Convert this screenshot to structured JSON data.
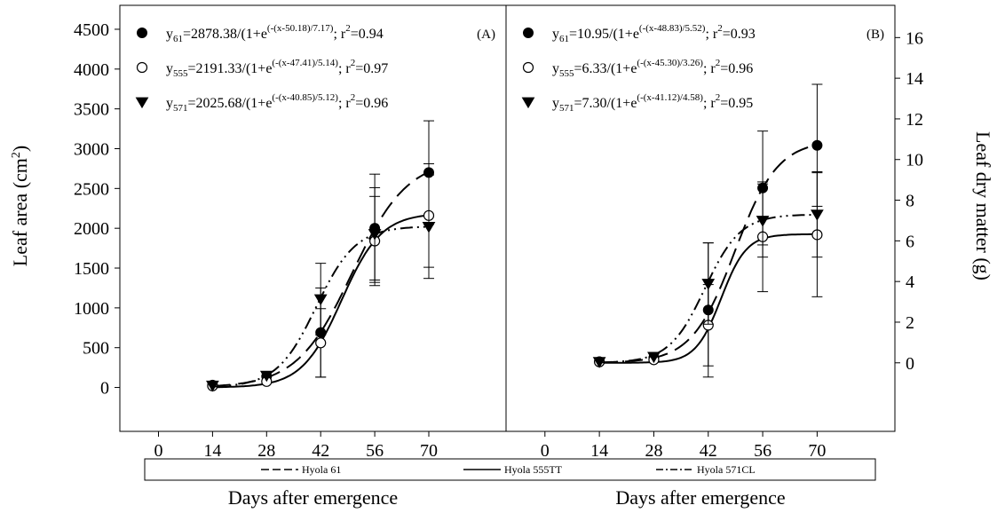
{
  "chart_data": [
    {
      "type": "line",
      "panel": "A",
      "panel_label": "(A)",
      "xlabel": "Days after emergence",
      "ylabel": "Leaf area (cm",
      "ylabel_sup": "2",
      "ylabel_end": ")",
      "y_axis_side": "left",
      "xlim": [
        -10,
        90
      ],
      "ylim": [
        -150,
        4600
      ],
      "x_ticks": [
        0,
        14,
        28,
        42,
        56,
        70
      ],
      "y_ticks": [
        0,
        500,
        1000,
        1500,
        2000,
        2500,
        3000,
        3500,
        4000,
        4500
      ],
      "equations": [
        {
          "prefix": "y",
          "sub": "61",
          "body": "=2878.38/(1+e",
          "exp": "(-(x-50.18)/7.17)",
          "tail": "; r",
          "r2sup": "2",
          "r2val": "=0.94",
          "marker": "filled-circle"
        },
        {
          "prefix": "y",
          "sub": "555",
          "body": "=2191.33/(1+e",
          "exp": "(-(x-47.41)/5.14)",
          "tail": "; r",
          "r2sup": "2",
          "r2val": "=0.97",
          "marker": "open-circle"
        },
        {
          "prefix": "y",
          "sub": "571",
          "body": "=2025.68/(1+e",
          "exp": "(-(x-40.85)/5.12)",
          "tail": "; r",
          "r2sup": "2",
          "r2val": "=0.96",
          "marker": "triangle-down"
        }
      ],
      "series": [
        {
          "name": "Hyola 61",
          "marker": "filled-circle",
          "line": "dashed",
          "params": {
            "a": 2878.38,
            "x0": 50.18,
            "b": 7.17
          },
          "x": [
            14,
            28,
            42,
            56,
            70
          ],
          "y": [
            30,
            140,
            690,
            2000,
            2700
          ],
          "err": [
            0,
            0,
            560,
            680,
            650
          ]
        },
        {
          "name": "Hyola 555TT",
          "marker": "open-circle",
          "line": "solid",
          "params": {
            "a": 2191.33,
            "x0": 47.41,
            "b": 5.14
          },
          "x": [
            14,
            28,
            42,
            56,
            70
          ],
          "y": [
            20,
            75,
            560,
            1840,
            2160
          ],
          "err": [
            0,
            0,
            430,
            560,
            650
          ]
        },
        {
          "name": "Hyola 571CL",
          "marker": "triangle-down",
          "line": "dashdot",
          "params": {
            "a": 2025.68,
            "x0": 40.85,
            "b": 5.12
          },
          "x": [
            14,
            28,
            42,
            56,
            70
          ],
          "y": [
            25,
            150,
            1110,
            1930,
            2020
          ],
          "err": [
            0,
            0,
            450,
            580,
            650
          ]
        }
      ]
    },
    {
      "type": "line",
      "panel": "B",
      "panel_label": "(B)",
      "xlabel": "Days after emergence",
      "ylabel": "Leaf dry matter (g)",
      "y_axis_side": "right",
      "xlim": [
        -10,
        90
      ],
      "ylim": [
        -1.8,
        16.8
      ],
      "x_ticks": [
        0,
        14,
        28,
        42,
        56,
        70
      ],
      "y_ticks": [
        0,
        2,
        4,
        6,
        8,
        10,
        12,
        14,
        16
      ],
      "equations": [
        {
          "prefix": "y",
          "sub": "61",
          "body": "=10.95/(1+e",
          "exp": "(-(x-48.83)/5.52)",
          "tail": "; r",
          "r2sup": "2",
          "r2val": "=0.93",
          "marker": "filled-circle"
        },
        {
          "prefix": "y",
          "sub": "555",
          "body": "=6.33/(1+e",
          "exp": "(-(x-45.30)/3.26)",
          "tail": "; r",
          "r2sup": "2",
          "r2val": "=0.96",
          "marker": "open-circle"
        },
        {
          "prefix": "y",
          "sub": "571",
          "body": "=7.30/(1+e",
          "exp": "(-(x-41.12)/4.58)",
          "tail": "; r",
          "r2sup": "2",
          "r2val": "=0.95",
          "marker": "triangle-down"
        }
      ],
      "series": [
        {
          "name": "Hyola 61",
          "marker": "filled-circle",
          "line": "dashed",
          "params": {
            "a": 10.95,
            "x0": 48.83,
            "b": 5.52
          },
          "x": [
            14,
            28,
            42,
            56,
            70
          ],
          "y": [
            0.05,
            0.25,
            2.6,
            8.6,
            10.7
          ],
          "err": [
            0,
            0,
            3.3,
            2.8,
            3.0
          ]
        },
        {
          "name": "Hyola 555TT",
          "marker": "open-circle",
          "line": "solid",
          "params": {
            "a": 6.33,
            "x0": 45.3,
            "b": 3.26
          },
          "x": [
            14,
            28,
            42,
            56,
            70
          ],
          "y": [
            0.05,
            0.15,
            1.85,
            6.2,
            6.3
          ],
          "err": [
            0,
            0,
            2.0,
            2.7,
            3.05
          ]
        },
        {
          "name": "Hyola 571CL",
          "marker": "triangle-down",
          "line": "dashdot",
          "params": {
            "a": 7.3,
            "x0": 41.12,
            "b": 4.58
          },
          "x": [
            14,
            28,
            42,
            56,
            70
          ],
          "y": [
            0.05,
            0.3,
            3.9,
            7.0,
            7.3
          ],
          "err": [
            0,
            0,
            2.0,
            1.8,
            2.1
          ]
        }
      ]
    }
  ],
  "legend": {
    "placement": "bottom",
    "items": [
      {
        "label": "Hyola 61",
        "line": "dashed"
      },
      {
        "label": "Hyola 555TT",
        "line": "solid"
      },
      {
        "label": "Hyola 571CL",
        "line": "dashdot"
      }
    ]
  }
}
